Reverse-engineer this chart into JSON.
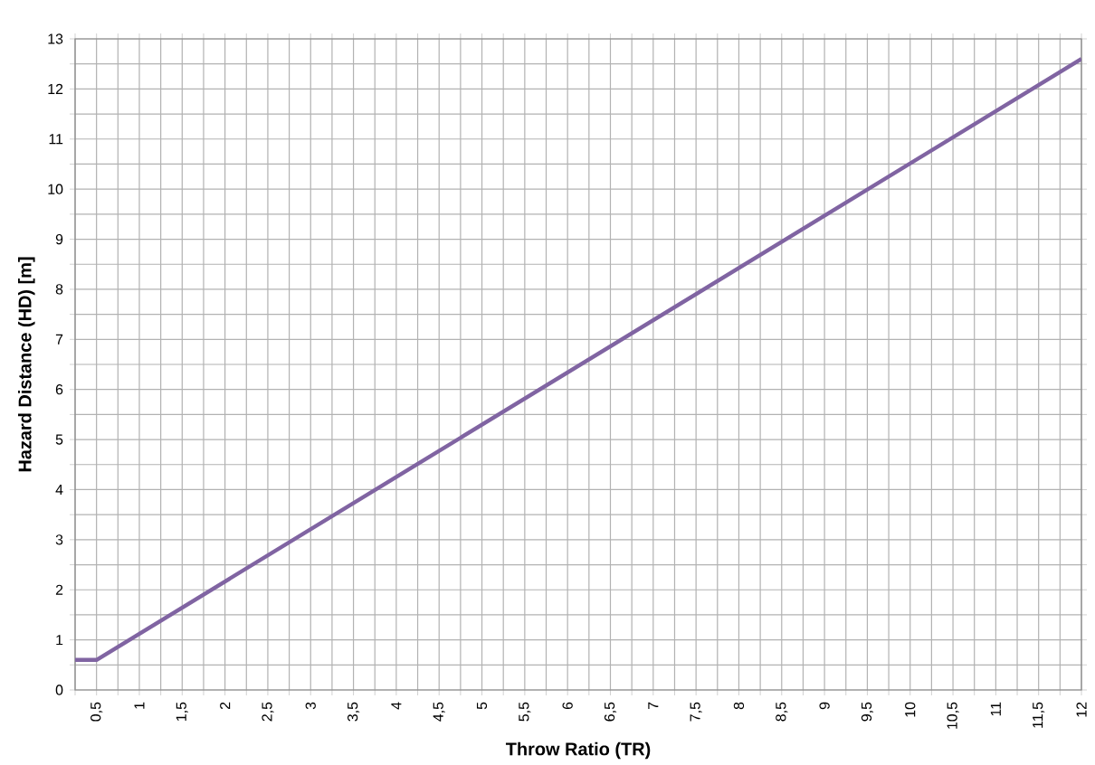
{
  "chart_data": {
    "type": "line",
    "xlabel": "Throw Ratio (TR)",
    "ylabel": "Hazard Distance (HD) [m]",
    "x": [
      0.25,
      0.5,
      12
    ],
    "series": [
      {
        "color": "#8064a2",
        "values": [
          0.6,
          0.6,
          12.6
        ]
      }
    ],
    "xlim": [
      0.25,
      12
    ],
    "ylim": [
      0,
      13
    ],
    "xticks": [
      {
        "value": 0.25,
        "label": null
      },
      {
        "value": 0.5,
        "label": "0,5"
      },
      {
        "value": 0.75,
        "label": null
      },
      1,
      {
        "value": 1.25,
        "label": null
      },
      {
        "value": 1.5,
        "label": "1,5"
      },
      {
        "value": 1.75,
        "label": null
      },
      2,
      {
        "value": 2.25,
        "label": null
      },
      {
        "value": 2.5,
        "label": "2,5"
      },
      {
        "value": 2.75,
        "label": null
      },
      3,
      {
        "value": 3.25,
        "label": null
      },
      {
        "value": 3.5,
        "label": "3,5"
      },
      {
        "value": 3.75,
        "label": null
      },
      4,
      {
        "value": 4.25,
        "label": null
      },
      {
        "value": 4.5,
        "label": "4,5"
      },
      {
        "value": 4.75,
        "label": null
      },
      5,
      {
        "value": 5.25,
        "label": null
      },
      {
        "value": 5.5,
        "label": "5,5"
      },
      {
        "value": 5.75,
        "label": null
      },
      6,
      {
        "value": 6.25,
        "label": null
      },
      {
        "value": 6.5,
        "label": "6,5"
      },
      {
        "value": 6.75,
        "label": null
      },
      7,
      {
        "value": 7.25,
        "label": null
      },
      {
        "value": 7.5,
        "label": "7,5"
      },
      {
        "value": 7.75,
        "label": null
      },
      8,
      {
        "value": 8.25,
        "label": null
      },
      {
        "value": 8.5,
        "label": "8,5"
      },
      {
        "value": 8.75,
        "label": null
      },
      9,
      {
        "value": 9.25,
        "label": null
      },
      {
        "value": 9.5,
        "label": "9,5"
      },
      {
        "value": 9.75,
        "label": null
      },
      10,
      {
        "value": 10.25,
        "label": null
      },
      {
        "value": 10.5,
        "label": "10,5"
      },
      {
        "value": 10.75,
        "label": null
      },
      11,
      {
        "value": 11.25,
        "label": null
      },
      {
        "value": 11.5,
        "label": "11,5"
      },
      {
        "value": 11.75,
        "label": null
      },
      12
    ],
    "yticks": [
      0,
      {
        "value": 0.5,
        "label": null
      },
      1,
      {
        "value": 1.5,
        "label": null
      },
      2,
      {
        "value": 2.5,
        "label": null
      },
      3,
      {
        "value": 3.5,
        "label": null
      },
      4,
      {
        "value": 4.5,
        "label": null
      },
      5,
      {
        "value": 5.5,
        "label": null
      },
      6,
      {
        "value": 6.5,
        "label": null
      },
      7,
      {
        "value": 7.5,
        "label": null
      },
      8,
      {
        "value": 8.5,
        "label": null
      },
      9,
      {
        "value": 9.5,
        "label": null
      },
      10,
      {
        "value": 10.5,
        "label": null
      },
      11,
      {
        "value": 11.5,
        "label": null
      },
      12,
      {
        "value": 12.5,
        "label": null
      },
      13
    ],
    "grid": true,
    "marker": "none",
    "line_style": "solid"
  }
}
